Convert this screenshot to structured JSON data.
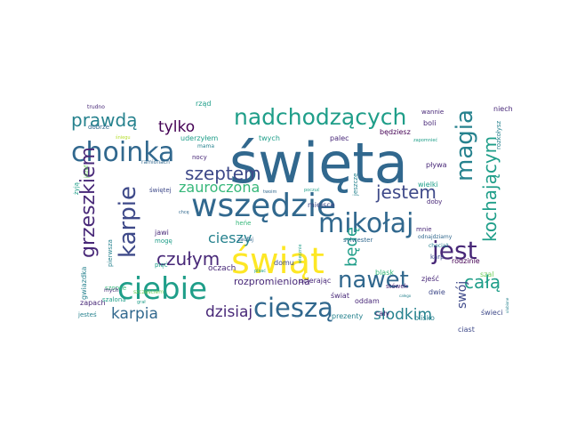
{
  "palette": {
    "dark_purple": "#440154",
    "indigo": "#482878",
    "slate_blue": "#3e4989",
    "steel_blue": "#31688e",
    "teal": "#26828e",
    "sea_green": "#1f9e89",
    "green": "#35b779",
    "lime": "#6ece58",
    "yellow_green": "#b5de2b",
    "yellow": "#fde725"
  },
  "words": [
    {
      "text": "święta",
      "color": "steel_blue"
    },
    {
      "text": "wszędzie",
      "color": "steel_blue"
    },
    {
      "text": "świąt",
      "color": "yellow"
    },
    {
      "text": "ciebie",
      "color": "sea_green"
    },
    {
      "text": "choinka",
      "color": "steel_blue"
    },
    {
      "text": "nadchodzących",
      "color": "sea_green"
    },
    {
      "text": "mikołaj",
      "color": "steel_blue"
    },
    {
      "text": "karpie",
      "color": "slate_blue"
    },
    {
      "text": "cieszą",
      "color": "steel_blue"
    },
    {
      "text": "magia",
      "color": "teal"
    },
    {
      "text": "jest",
      "color": "indigo"
    },
    {
      "text": "nawet",
      "color": "steel_blue"
    },
    {
      "text": "grzeszkiem",
      "color": "indigo"
    },
    {
      "text": "kochającym",
      "color": "sea_green"
    },
    {
      "text": "prawdą",
      "color": "teal"
    },
    {
      "text": "szeptem",
      "color": "slate_blue"
    },
    {
      "text": "jestem",
      "color": "slate_blue"
    },
    {
      "text": "czułym",
      "color": "indigo"
    },
    {
      "text": "tylko",
      "color": "dark_purple"
    },
    {
      "text": "zauroczona",
      "color": "green"
    },
    {
      "text": "całą",
      "color": "sea_green"
    },
    {
      "text": "karpia",
      "color": "steel_blue"
    },
    {
      "text": "dzisiaj",
      "color": "indigo"
    },
    {
      "text": "słodkim",
      "color": "teal"
    },
    {
      "text": "cieszy",
      "color": "teal"
    },
    {
      "text": "będę",
      "color": "sea_green"
    },
    {
      "text": "swój",
      "color": "slate_blue"
    },
    {
      "text": "rozpromieniona",
      "color": "indigo"
    },
    {
      "text": "uderzyłem",
      "color": "sea_green"
    },
    {
      "text": "twych",
      "color": "sea_green"
    },
    {
      "text": "będziesz",
      "color": "dark_purple"
    },
    {
      "text": "palec",
      "color": "indigo"
    },
    {
      "text": "rodzinie",
      "color": "dark_purple"
    },
    {
      "text": "sylwester",
      "color": "steel_blue"
    },
    {
      "text": "blisko",
      "color": "teal"
    },
    {
      "text": "świeci",
      "color": "slate_blue"
    },
    {
      "text": "prezenty",
      "color": "teal"
    },
    {
      "text": "cały",
      "color": "indigo"
    },
    {
      "text": "ciast",
      "color": "slate_blue"
    },
    {
      "text": "oczach",
      "color": "indigo"
    },
    {
      "text": "domu",
      "color": "slate_blue"
    },
    {
      "text": "gwiazdka",
      "color": "teal"
    },
    {
      "text": "szopce",
      "color": "green"
    },
    {
      "text": "szczęściem",
      "color": "lime"
    },
    {
      "text": "zapach",
      "color": "indigo"
    },
    {
      "text": "jesteś",
      "color": "teal"
    },
    {
      "text": "świat",
      "color": "indigo"
    },
    {
      "text": "oddam",
      "color": "indigo"
    },
    {
      "text": "zjeść",
      "color": "indigo"
    },
    {
      "text": "dwie",
      "color": "slate_blue"
    },
    {
      "text": "blask",
      "color": "green"
    },
    {
      "text": "stówek",
      "color": "indigo"
    },
    {
      "text": "szal",
      "color": "lime"
    },
    {
      "text": "karp",
      "color": "slate_blue"
    },
    {
      "text": "ucierając",
      "color": "indigo"
    },
    {
      "text": "miejsce",
      "color": "slate_blue"
    },
    {
      "text": "jeszcze",
      "color": "teal"
    },
    {
      "text": "mnie",
      "color": "indigo"
    },
    {
      "text": "doby",
      "color": "indigo"
    },
    {
      "text": "wielki",
      "color": "sea_green"
    },
    {
      "text": "pływa",
      "color": "indigo"
    },
    {
      "text": "rozkołysz",
      "color": "teal"
    },
    {
      "text": "niech",
      "color": "indigo"
    },
    {
      "text": "wannie",
      "color": "indigo"
    },
    {
      "text": "boli",
      "color": "indigo"
    },
    {
      "text": "rząd",
      "color": "sea_green"
    },
    {
      "text": "trudno",
      "color": "indigo"
    },
    {
      "text": "dobrze",
      "color": "steel_blue"
    },
    {
      "text": "mama",
      "color": "teal"
    },
    {
      "text": "nocy",
      "color": "indigo"
    },
    {
      "text": "ramionach",
      "color": "steel_blue"
    },
    {
      "text": "żyją",
      "color": "sea_green"
    },
    {
      "text": "józef",
      "color": "lime"
    },
    {
      "text": "świętej",
      "color": "slate_blue"
    },
    {
      "text": "jawi",
      "color": "indigo"
    },
    {
      "text": "mogę",
      "color": "sea_green"
    },
    {
      "text": "heńe",
      "color": "green"
    },
    {
      "text": "pięć",
      "color": "sea_green"
    },
    {
      "text": "zaufaj",
      "color": "steel_blue"
    },
    {
      "text": "pierwsza",
      "color": "teal"
    },
    {
      "text": "szalona",
      "color": "sea_green"
    },
    {
      "text": "grał",
      "color": "sea_green"
    },
    {
      "text": "mych",
      "color": "indigo"
    },
    {
      "text": "odnajdziamy",
      "color": "steel_blue"
    },
    {
      "text": "chociaż",
      "color": "teal"
    },
    {
      "text": "zapomnieć",
      "color": "sea_green"
    },
    {
      "text": "twoim",
      "color": "steel_blue"
    },
    {
      "text": "poczuć",
      "color": "sea_green"
    },
    {
      "text": "chcę",
      "color": "steel_blue"
    },
    {
      "text": "pisać",
      "color": "sea_green"
    },
    {
      "text": "wiecznie",
      "color": "sea_green"
    },
    {
      "text": "całego",
      "color": "teal"
    },
    {
      "text": "ulubione",
      "color": "teal"
    },
    {
      "text": "śniegu",
      "color": "yellow_green"
    }
  ]
}
